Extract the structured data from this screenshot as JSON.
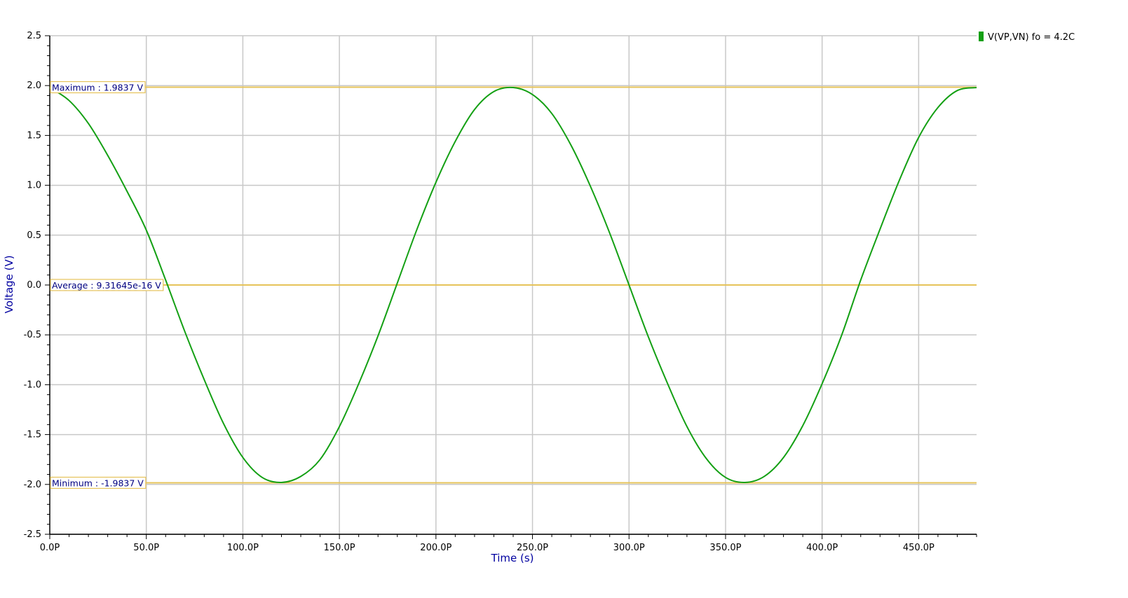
{
  "chart_data": {
    "type": "line",
    "xlabel": "Time (s)",
    "ylabel": "Voltage (V)",
    "xlim": [
      0,
      480
    ],
    "ylim": [
      -2.5,
      2.5
    ],
    "x_ticks": [
      0,
      50,
      100,
      150,
      200,
      250,
      300,
      350,
      400,
      450
    ],
    "x_tick_labels": [
      "0.0P",
      "50.0P",
      "100.0P",
      "150.0P",
      "200.0P",
      "250.0P",
      "300.0P",
      "350.0P",
      "400.0P",
      "450.0P"
    ],
    "y_ticks": [
      2.5,
      2.0,
      1.5,
      1.0,
      0.5,
      0.0,
      -0.5,
      -1.0,
      -1.5,
      -2.0,
      -2.5
    ],
    "y_tick_labels": [
      "2.5",
      "2.0",
      "1.5",
      "1.0",
      "0.5",
      "0.0",
      "-0.5",
      "-1.0",
      "-1.5",
      "-2.0",
      "-2.5"
    ],
    "grid": true,
    "legend": {
      "position": "top-right",
      "text": "V(VP,VN) fo = 4.2C",
      "color": "#14a014"
    },
    "series": [
      {
        "name": "V(VP,VN) fo = 4.2C",
        "color": "#14a014",
        "x": [
          0,
          10,
          20,
          30,
          40,
          50,
          60,
          70,
          80,
          90,
          100,
          110,
          120,
          130,
          140,
          150,
          160,
          170,
          180,
          190,
          200,
          210,
          220,
          230,
          240,
          250,
          260,
          270,
          280,
          290,
          300,
          310,
          320,
          330,
          340,
          350,
          360,
          370,
          380,
          390,
          400,
          410,
          420,
          430,
          440,
          450,
          460,
          470,
          480
        ],
        "y": [
          1.98,
          1.85,
          1.62,
          1.3,
          0.94,
          0.55,
          0.05,
          -0.47,
          -0.95,
          -1.39,
          -1.73,
          -1.93,
          -1.98,
          -1.92,
          -1.75,
          -1.42,
          -0.99,
          -0.51,
          0.02,
          0.55,
          1.03,
          1.44,
          1.76,
          1.94,
          1.98,
          1.91,
          1.72,
          1.4,
          0.99,
          0.52,
          0.0,
          -0.52,
          -0.99,
          -1.42,
          -1.74,
          -1.93,
          -1.98,
          -1.92,
          -1.73,
          -1.41,
          -0.99,
          -0.51,
          0.05,
          0.56,
          1.05,
          1.48,
          1.78,
          1.95,
          1.98
        ]
      }
    ],
    "markers": [
      {
        "label": "Maximum : 1.9837 V",
        "y": 1.9837,
        "color": "#e6c35a"
      },
      {
        "label": "Average : 9.31645e-16 V",
        "y": 0.0,
        "color": "#e6c35a"
      },
      {
        "label": "Minimum : -1.9837 V",
        "y": -1.9837,
        "color": "#e6c35a"
      }
    ],
    "colors": {
      "grid": "#c8c8c8",
      "axis": "#000000",
      "label": "#0000a0"
    }
  }
}
